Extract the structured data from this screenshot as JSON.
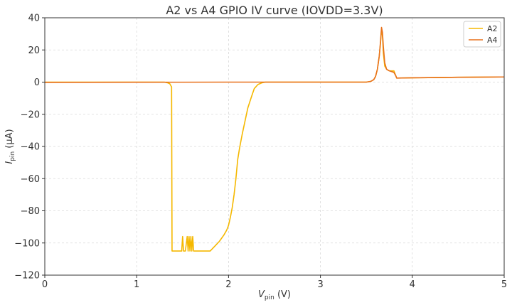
{
  "chart_data": {
    "type": "line",
    "title": "A2 vs A4 GPIO IV curve (IOVDD=3.3V)",
    "xlabel": {
      "main": "V",
      "sub": "pin",
      "unit": " (V)"
    },
    "ylabel": {
      "main": "I",
      "sub": "pin",
      "unit": " (μA)"
    },
    "xlim": [
      0,
      5
    ],
    "ylim": [
      -120,
      40
    ],
    "xticks": [
      0,
      1,
      2,
      3,
      4,
      5
    ],
    "xtick_labels": [
      "0",
      "1",
      "2",
      "3",
      "4",
      "5"
    ],
    "yticks": [
      -120,
      -100,
      -80,
      -60,
      -40,
      -20,
      0,
      20,
      40
    ],
    "ytick_labels": [
      "−120",
      "−100",
      "−80",
      "−60",
      "−40",
      "−20",
      "0",
      "20",
      "40"
    ],
    "grid": true,
    "legend_position": "top-right",
    "series": [
      {
        "name": "A2",
        "color": "#f5b800",
        "x": [
          0,
          0.5,
          1.0,
          1.3,
          1.34,
          1.36,
          1.37,
          1.38,
          1.385,
          1.39,
          1.45,
          1.49,
          1.5,
          1.51,
          1.53,
          1.55,
          1.56,
          1.57,
          1.58,
          1.59,
          1.6,
          1.61,
          1.62,
          1.63,
          1.65,
          1.75,
          1.8,
          1.85,
          1.9,
          1.95,
          1.98,
          2.0,
          2.02,
          2.04,
          2.06,
          2.08,
          2.1,
          2.12,
          2.15,
          2.18,
          2.21,
          2.25,
          2.28,
          2.32,
          2.36,
          2.4,
          2.5,
          3.0,
          3.3,
          3.5,
          3.55,
          3.58,
          3.6,
          3.62,
          3.64,
          3.655,
          3.665,
          3.675,
          3.685,
          3.7,
          3.72,
          3.75,
          3.8,
          3.82,
          3.83,
          4.0,
          4.5,
          5.0
        ],
        "y": [
          0,
          0,
          0,
          0,
          -0.5,
          -1,
          -2,
          -3,
          -105,
          -105,
          -105,
          -105,
          -96,
          -105,
          -105,
          -96,
          -105,
          -96,
          -105,
          -96,
          -105,
          -96,
          -105,
          -105,
          -105,
          -105,
          -105,
          -102,
          -99,
          -95,
          -92,
          -89,
          -84,
          -78,
          -70,
          -60,
          -48,
          -41,
          -32,
          -24,
          -16,
          -9,
          -4,
          -1.5,
          -0.5,
          0,
          0,
          0,
          0,
          0,
          0.5,
          1.5,
          3.5,
          8,
          16,
          25,
          33,
          29,
          18,
          10,
          8,
          7,
          7,
          4,
          2.5,
          2.7,
          3,
          3.2
        ]
      },
      {
        "name": "A4",
        "color": "#e8711c",
        "x": [
          0,
          1.0,
          2.0,
          3.0,
          3.5,
          3.55,
          3.58,
          3.6,
          3.62,
          3.64,
          3.655,
          3.665,
          3.675,
          3.685,
          3.7,
          3.72,
          3.75,
          3.8,
          3.82,
          3.83,
          4.0,
          4.5,
          5.0
        ],
        "y": [
          -0.2,
          -0.1,
          0,
          0,
          0,
          0.5,
          1.5,
          3.5,
          8,
          16,
          26,
          34,
          31,
          22,
          12,
          8,
          7,
          6,
          4,
          2.5,
          2.7,
          3,
          3.2
        ]
      }
    ]
  }
}
